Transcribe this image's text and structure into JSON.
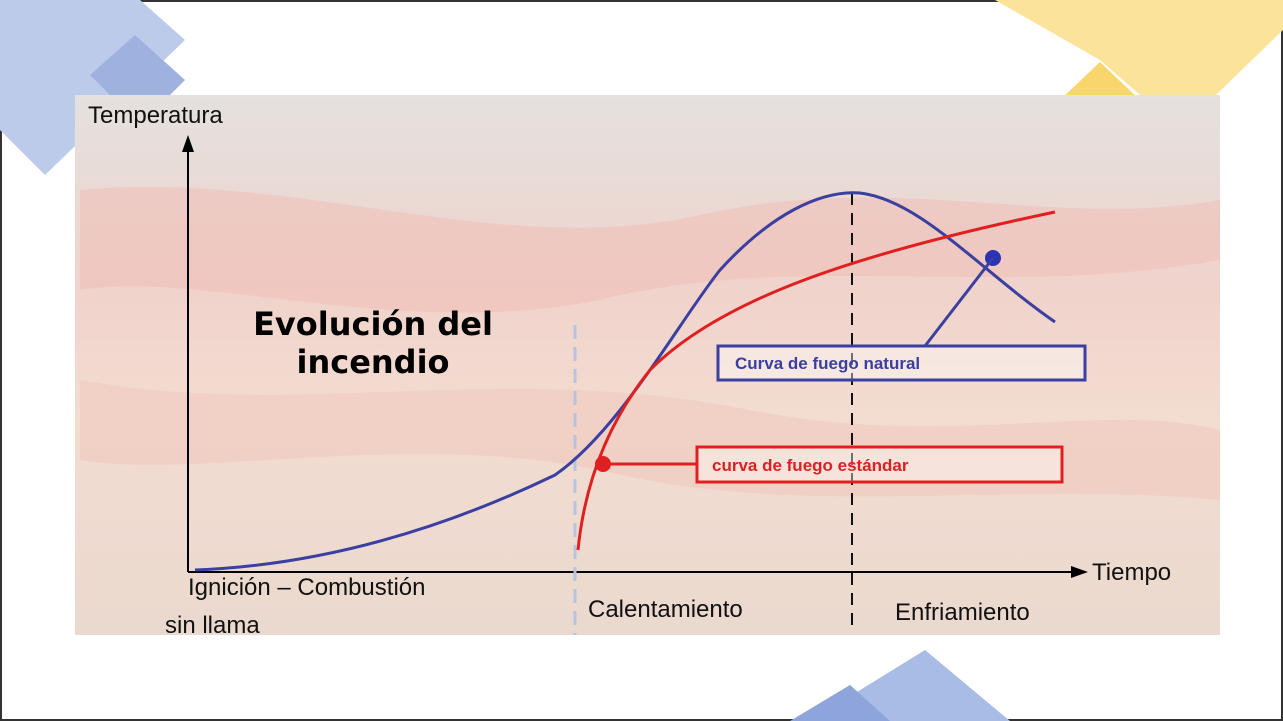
{
  "title": {
    "lines": [
      "Evolución del",
      "incendio"
    ]
  },
  "axes": {
    "y_label": "Temperatura",
    "x_label": "Tiempo"
  },
  "phases": {
    "ignition": [
      "Ignición – Combustión",
      "sin llama"
    ],
    "heating": "Calentamiento",
    "cooling": "Enfriamiento"
  },
  "legend": {
    "natural": "Curva de fuego natural",
    "standard": "curva de fuego estándar"
  }
}
